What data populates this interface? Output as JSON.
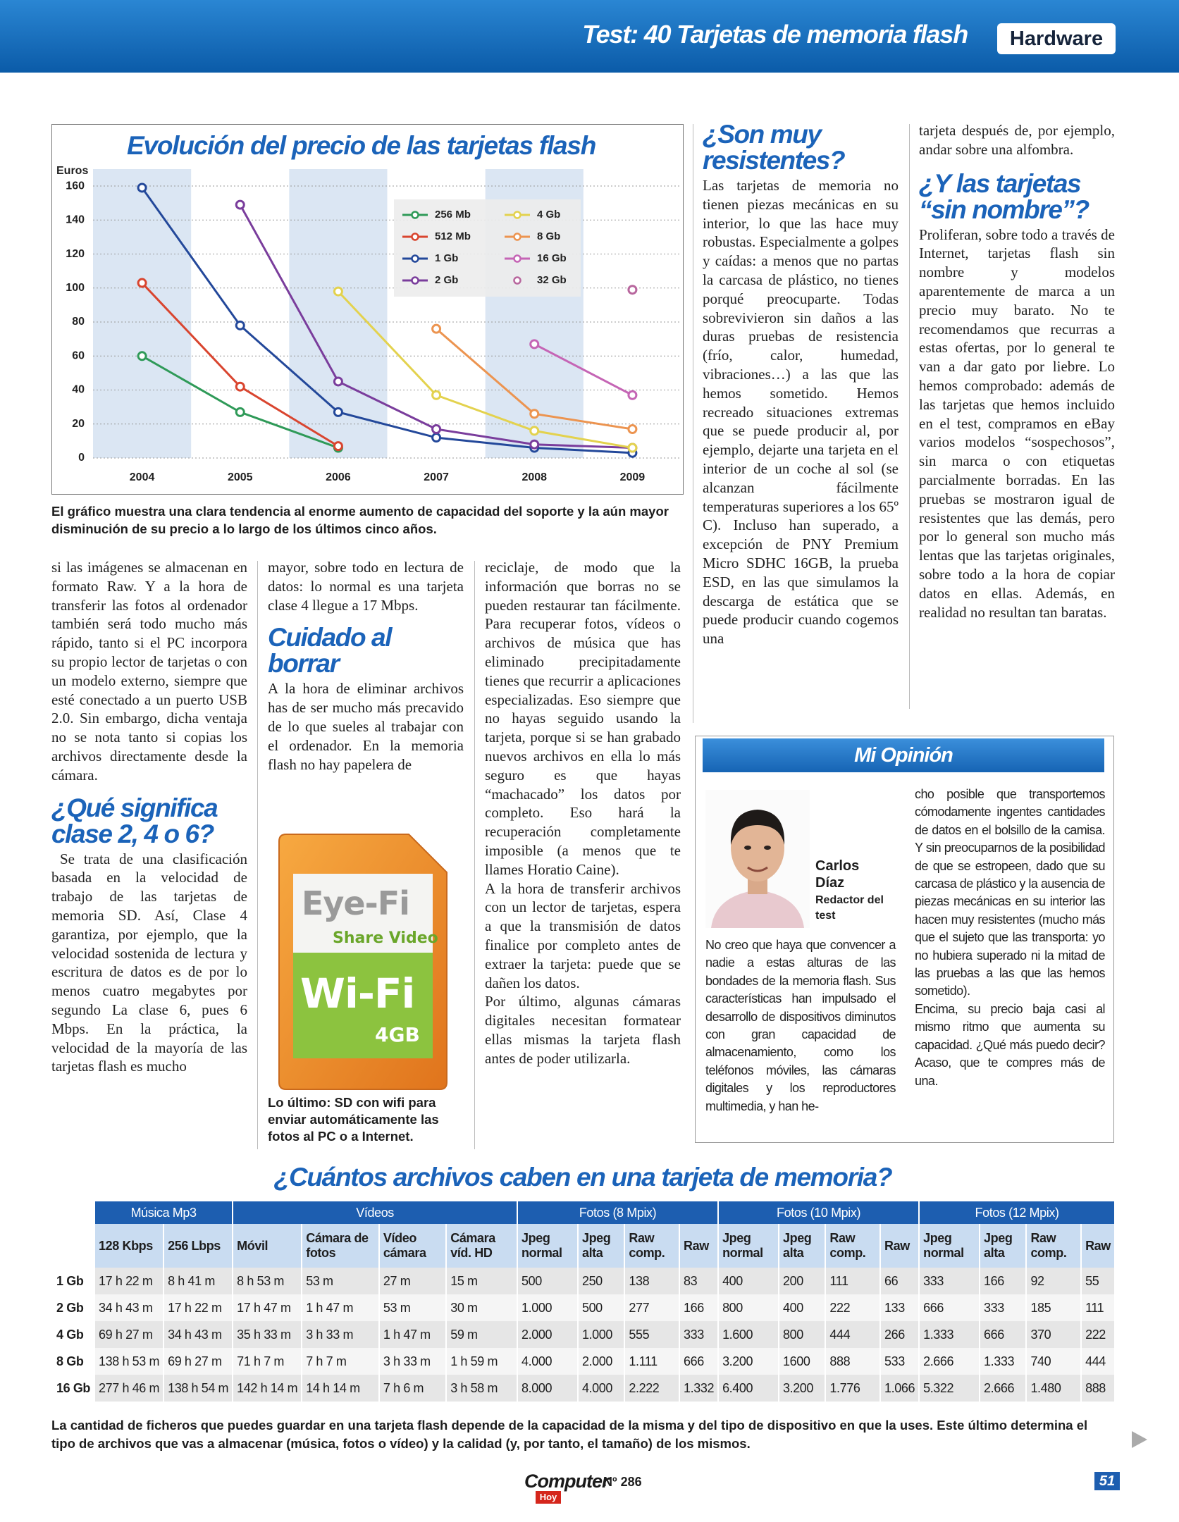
{
  "header": {
    "title": "Test: 40 Tarjetas de memoria flash",
    "section": "Hardware"
  },
  "chart_data": {
    "type": "line",
    "title": "Evolución del precio de las tarjetas flash",
    "y_label": "Euros",
    "categories": [
      "2004",
      "2005",
      "2006",
      "2007",
      "2008",
      "2009"
    ],
    "ylim": [
      0,
      165
    ],
    "yticks": [
      0,
      20,
      40,
      60,
      80,
      100,
      120,
      140,
      160
    ],
    "grid": true,
    "legend": "upper right",
    "series": [
      {
        "name": "256 Mb",
        "color": "#2f9a58",
        "values": [
          60,
          27,
          6,
          null,
          null,
          null
        ]
      },
      {
        "name": "512 Mb",
        "color": "#d9452f",
        "values": [
          103,
          42,
          7,
          null,
          null,
          null
        ]
      },
      {
        "name": "1 Gb",
        "color": "#23489a",
        "values": [
          159,
          78,
          27,
          12,
          6,
          3
        ]
      },
      {
        "name": "2 Gb",
        "color": "#7a3d9c",
        "values": [
          null,
          149,
          45,
          17,
          8,
          6
        ]
      },
      {
        "name": "4 Gb",
        "color": "#e3d24e",
        "values": [
          null,
          null,
          98,
          37,
          16,
          6
        ]
      },
      {
        "name": "8 Gb",
        "color": "#ec9450",
        "values": [
          null,
          null,
          null,
          76,
          26,
          17
        ]
      },
      {
        "name": "16 Gb",
        "color": "#c565b5",
        "values": [
          null,
          null,
          null,
          null,
          67,
          37
        ]
      },
      {
        "name": "32 Gb",
        "color": "#b8679e",
        "values": [
          null,
          null,
          null,
          null,
          null,
          99
        ]
      }
    ]
  },
  "chart_caption": "El gráfico muestra una clara tendencia al enorme aumento de capacidad del soporte y la aún mayor disminución de su precio a lo largo de los últimos cinco años.",
  "columns": [
    {
      "lead": [
        "si las imágenes se almacenan en formato Raw. Y a la hora de transferir las fotos al ordenador también será todo mucho más rápido, tanto si el PC incorpora su propio lector de tarjetas o con un modelo externo, siempre que esté conectado a un puerto USB 2.0. Sin embargo, dicha ventaja no se nota tanto si copias los archivos directamente desde la cámara."
      ],
      "heading": "¿Qué significa clase 2, 4 o 6?",
      "body": [
        "Se trata de una clasificación basada en la velocidad de trabajo de las tarjetas de memoria SD. Así, Clase 4 garantiza, por ejemplo, que la velocidad sostenida de lectura y escritura de datos es de por lo menos cuatro megabytes por segundo La clase 6, pues 6 Mbps. En la práctica, la velocidad de la mayoría de las tarjetas flash es mucho"
      ]
    },
    {
      "lead": [
        "mayor, sobre todo en lectura de datos: lo normal es una tarjeta clase 4 llegue a 17 Mbps."
      ],
      "heading": "Cuidado al borrar",
      "body": [
        "A la hora de eliminar archivos has de ser mucho más precavido de lo que sueles al trabajar con el ordenador. En la memoria flash no hay papelera de"
      ]
    },
    {
      "body": [
        "reciclaje, de modo que la información que borras no se pueden restaurar tan fácilmente. Para recuperar fotos, vídeos o archivos de música que has eliminado precipitadamente tienes que recurrir a aplicaciones especializadas. Eso siempre que no hayas seguido usando la tarjeta, porque si se han grabado nuevos archivos en ella lo más seguro es que hayas “machacado” los datos por completo. Eso hará la recuperación completamente imposible (a menos que te llames Horatio Caine).",
        "A la hora de transferir archivos con un lector de tarjetas, espera a que la transmisión de datos finalice por completo antes de extraer la tarjeta: puede que se dañen los datos.",
        "Por último, algunas cámaras digitales necesitan formatear ellas mismas la tarjeta flash antes de poder utilizarla."
      ]
    },
    {
      "heading": "¿Son muy resistentes?",
      "body": [
        "Las tarjetas de memoria no tienen piezas mecánicas en su interior, lo que las hace muy robustas. Especialmente a golpes y caídas: a menos que no partas la carcasa de plástico, no tienes porqué preocuparte. Todas sobrevivieron sin daños a las duras pruebas de resistencia (frío, calor, humedad, vibraciones…) a las que las hemos sometido. Hemos recreado situaciones extremas que se puede producir al, por ejemplo, dejarte una tarjeta en el interior de un coche al sol (se alcanzan fácilmente temperaturas superiores a los 65º C). Incluso han superado, a excepción de PNY Premium Micro SDHC 16GB, la prueba ESD, en las que simulamos la descarga de estática que se puede producir cuando cogemos una"
      ]
    },
    {
      "lead": [
        "tarjeta después de, por ejemplo, andar sobre una alfombra."
      ],
      "heading": "¿Y las tarjetas “sin nombre”?",
      "body": [
        "Proliferan, sobre todo a través de Internet, tarjetas flash sin nombre y modelos aparentemente de marca a un precio muy barato. No te recomendamos que recurras a estas ofertas, por lo general te van a dar gato por liebre. Lo hemos comprobado: además de las tarjetas que hemos incluido en el test, compramos en eBay varios modelos “sospechosos”, sin marca o con etiquetas parcialmente borradas. En las pruebas se mostraron igual de resistentes que las demás, pero por lo general son mucho más lentas que las tarjetas originales, sobre todo a la hora de copiar datos en ellas. Además, en realidad no resultan tan baratas."
      ]
    }
  ],
  "photo": {
    "brand": "Eye-Fi",
    "tagline": "Share Video",
    "label": "Wi-Fi",
    "capacity": "4GB",
    "caption": "Lo último: SD con wifi para enviar automáticamente las fotos al PC o a Internet."
  },
  "opinion": {
    "title": "Mi Opinión",
    "author": "Carlos Díaz",
    "role": "Redactor del test",
    "text": [
      "No creo que haya que convencer a nadie a estas alturas de las bondades de la memoria flash. Sus características han impulsado el desarrollo de dispositivos diminutos con gran capacidad de almacenamiento, como los teléfonos móviles, las cámaras digitales y los reproductores multimedia, y han he-",
      "cho posible que transportemos cómodamente ingentes cantidades de datos en el bolsillo de la camisa. Y sin preocuparnos de la posibilidad de que se estropeen, dado que su carcasa de plástico y la ausencia de piezas mecánicas en su interior las hacen muy resistentes (mucho más que el sujeto que las transporta: yo no hubiera superado ni la mitad de las pruebas a las que las hemos sometido).",
      "Encima, su precio baja casi al mismo ritmo que aumenta su capacidad. ¿Qué más puedo decir? Acaso, que te compres más de una."
    ]
  },
  "table": {
    "title": "¿Cuántos archivos caben en una tarjeta de memoria?",
    "groups": [
      {
        "label": "Música Mp3",
        "columns": [
          "128 Kbps",
          "256 Lbps"
        ]
      },
      {
        "label": "Vídeos",
        "columns": [
          "Móvil",
          "Cámara de fotos",
          "Vídeo cámara",
          "Cámara víd. HD"
        ]
      },
      {
        "label": "Fotos (8 Mpix)",
        "columns": [
          "Jpeg normal",
          "Jpeg alta",
          "Raw comp.",
          "Raw"
        ]
      },
      {
        "label": "Fotos (10 Mpix)",
        "columns": [
          "Jpeg normal",
          "Jpeg alta",
          "Raw comp.",
          "Raw"
        ]
      },
      {
        "label": "Fotos (12 Mpix)",
        "columns": [
          "Jpeg normal",
          "Jpeg alta",
          "Raw comp.",
          "Raw"
        ]
      }
    ],
    "rows": [
      {
        "label": "1 Gb",
        "cells": [
          "17 h 22 m",
          "8 h 41 m",
          "8 h 53 m",
          "53 m",
          "27 m",
          "15 m",
          "500",
          "250",
          "138",
          "83",
          "400",
          "200",
          "111",
          "66",
          "333",
          "166",
          "92",
          "55"
        ]
      },
      {
        "label": "2 Gb",
        "cells": [
          "34 h 43 m",
          "17 h 22 m",
          "17 h 47 m",
          "1 h 47 m",
          "53 m",
          "30 m",
          "1.000",
          "500",
          "277",
          "166",
          "800",
          "400",
          "222",
          "133",
          "666",
          "333",
          "185",
          "111"
        ]
      },
      {
        "label": "4 Gb",
        "cells": [
          "69 h 27 m",
          "34 h 43 m",
          "35 h 33 m",
          "3 h 33 m",
          "1 h 47 m",
          "59 m",
          "2.000",
          "1.000",
          "555",
          "333",
          "1.600",
          "800",
          "444",
          "266",
          "1.333",
          "666",
          "370",
          "222"
        ]
      },
      {
        "label": "8 Gb",
        "cells": [
          "138 h 53 m",
          "69 h 27 m",
          "71 h 7 m",
          "7 h 7 m",
          "3 h 33 m",
          "1 h 59 m",
          "4.000",
          "2.000",
          "1.111",
          "666",
          "3.200",
          "1600",
          "888",
          "533",
          "2.666",
          "1.333",
          "740",
          "444"
        ]
      },
      {
        "label": "16 Gb",
        "cells": [
          "277 h 46 m",
          "138 h 54 m",
          "142 h 14 m",
          "14 h 14 m",
          "7 h 6 m",
          "3 h 58 m",
          "8.000",
          "4.000",
          "2.222",
          "1.332",
          "6.400",
          "3.200",
          "1.776",
          "1.066",
          "5.322",
          "2.666",
          "1.480",
          "888"
        ]
      }
    ],
    "caption": "La cantidad de ficheros que puedes guardar en una tarjeta flash depende de la capacidad de la misma y del tipo de dispositivo en que la uses. Este último determina el tipo de archivos que vas a almacenar (música, fotos o vídeo) y la calidad (y, por tanto, el tamaño) de los mismos."
  },
  "footer": {
    "magazine": "Computer",
    "magazine_sub": "Hoy",
    "issue": "Nº 286",
    "page": "51"
  }
}
